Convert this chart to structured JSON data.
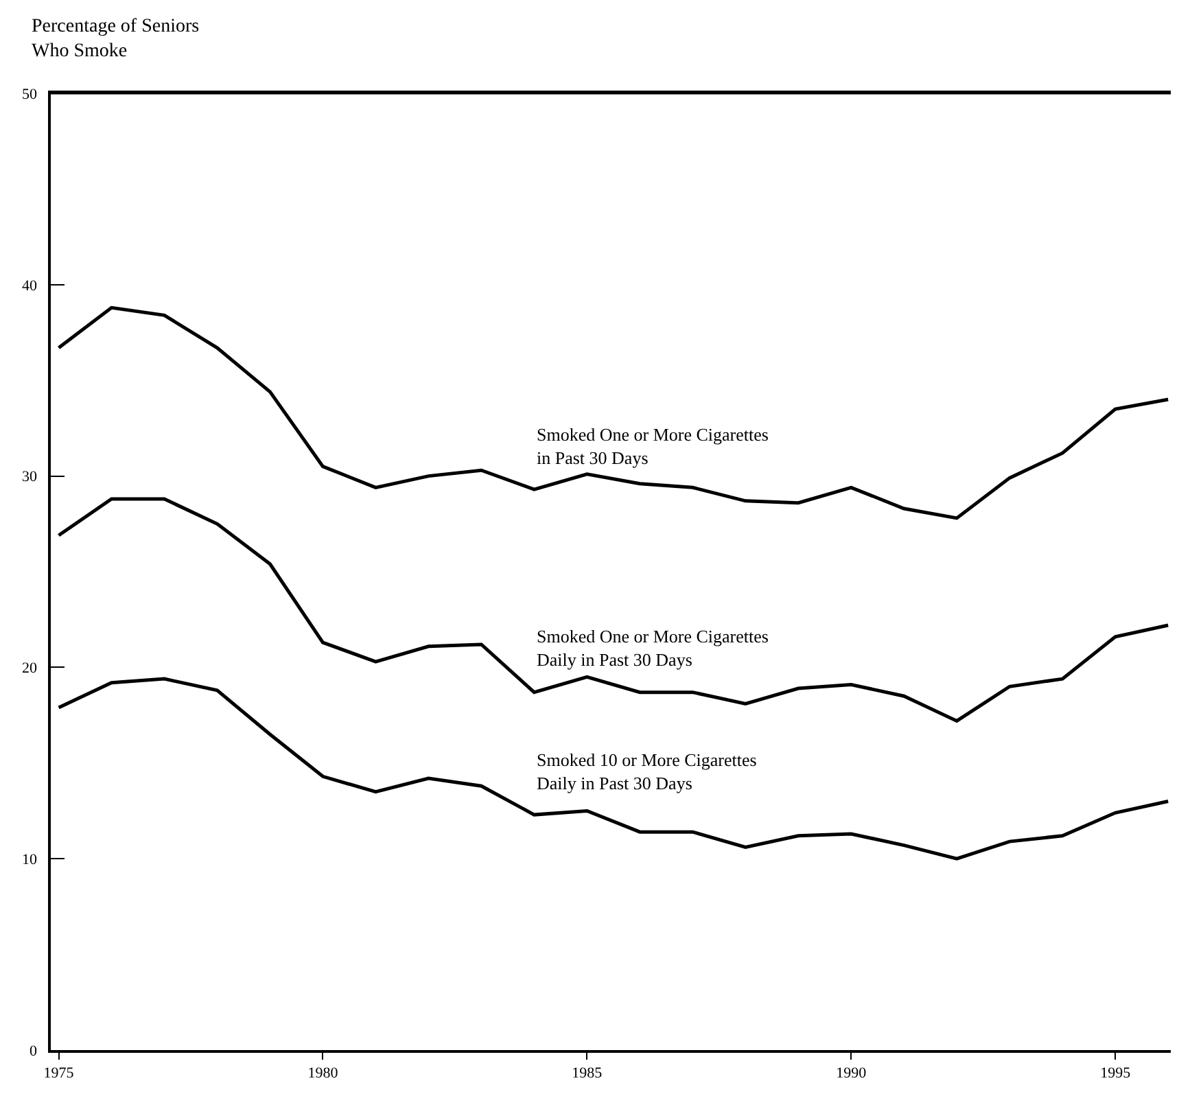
{
  "chart_data": {
    "type": "line",
    "ylabel": "Percentage of Seniors\nWho Smoke",
    "x": [
      1975,
      1976,
      1977,
      1978,
      1979,
      1980,
      1981,
      1982,
      1983,
      1984,
      1985,
      1986,
      1987,
      1988,
      1989,
      1990,
      1991,
      1992,
      1993,
      1994,
      1995,
      1996
    ],
    "series": [
      {
        "name": "Smoked One or More Cigarettes\nin Past 30 Days",
        "color": "#000000",
        "values": [
          36.7,
          38.8,
          38.4,
          36.7,
          34.4,
          30.5,
          29.4,
          30.0,
          30.3,
          29.3,
          30.1,
          29.6,
          29.4,
          28.7,
          28.6,
          29.4,
          28.3,
          27.8,
          29.9,
          31.2,
          33.5,
          34.0
        ]
      },
      {
        "name": "Smoked One or More Cigarettes\nDaily in Past 30 Days",
        "color": "#000000",
        "values": [
          26.9,
          28.8,
          28.8,
          27.5,
          25.4,
          21.3,
          20.3,
          21.1,
          21.2,
          18.7,
          19.5,
          18.7,
          18.7,
          18.1,
          18.9,
          19.1,
          18.5,
          17.2,
          19.0,
          19.4,
          21.6,
          22.2
        ]
      },
      {
        "name": "Smoked 10 or More Cigarettes\nDaily in Past 30 Days",
        "color": "#000000",
        "values": [
          17.9,
          19.2,
          19.4,
          18.8,
          16.5,
          14.3,
          13.5,
          14.2,
          13.8,
          12.3,
          12.5,
          11.4,
          11.4,
          10.6,
          11.2,
          11.3,
          10.7,
          10.0,
          10.9,
          11.2,
          12.4,
          13.0
        ]
      }
    ],
    "xlim": [
      1974.85,
      1996.05
    ],
    "xticks": [
      1975,
      1980,
      1985,
      1990,
      1995
    ],
    "ylim": [
      0,
      50
    ],
    "yticks": [
      0,
      10,
      20,
      30,
      40,
      50
    ],
    "legend": false,
    "marker": "none",
    "line_style": "solid"
  }
}
